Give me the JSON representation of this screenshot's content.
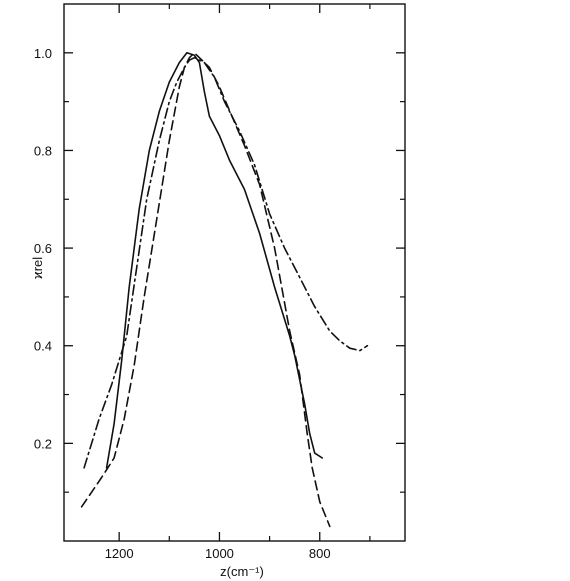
{
  "chart_data": {
    "type": "line",
    "title": "",
    "xlabel": "z(cm⁻¹)",
    "ylabel": "ϰrel",
    "x_reversed": true,
    "xlim": [
      1310,
      630
    ],
    "ylim": [
      0.0,
      1.1
    ],
    "xticks": [
      {
        "value": 1200,
        "label": "1200"
      },
      {
        "value": 1000,
        "label": "1000"
      },
      {
        "value": 800,
        "label": "800"
      }
    ],
    "xminor": [
      1100,
      900,
      700
    ],
    "yticks": [
      {
        "value": 0.2,
        "label": "0.2"
      },
      {
        "value": 0.4,
        "label": "0.4"
      },
      {
        "value": 0.6,
        "label": "0.6"
      },
      {
        "value": 0.8,
        "label": "0.8"
      },
      {
        "value": 1.0,
        "label": "1.0"
      }
    ],
    "yminor": [
      0.1,
      0.3,
      0.5,
      0.7,
      0.9
    ],
    "grid": false,
    "legend": "none",
    "series": [
      {
        "style": "solid",
        "points": [
          [
            1225,
            0.15
          ],
          [
            1210,
            0.24
          ],
          [
            1195,
            0.37
          ],
          [
            1180,
            0.52
          ],
          [
            1160,
            0.68
          ],
          [
            1140,
            0.8
          ],
          [
            1120,
            0.88
          ],
          [
            1100,
            0.94
          ],
          [
            1080,
            0.98
          ],
          [
            1065,
            1.0
          ],
          [
            1050,
            0.995
          ],
          [
            1040,
            0.98
          ],
          [
            1030,
            0.92
          ],
          [
            1020,
            0.87
          ],
          [
            1000,
            0.83
          ],
          [
            980,
            0.78
          ],
          [
            950,
            0.72
          ],
          [
            920,
            0.63
          ],
          [
            890,
            0.52
          ],
          [
            860,
            0.42
          ],
          [
            850,
            0.38
          ],
          [
            840,
            0.33
          ],
          [
            830,
            0.28
          ],
          [
            820,
            0.22
          ],
          [
            810,
            0.18
          ],
          [
            795,
            0.17
          ]
        ]
      },
      {
        "style": "dashed",
        "points": [
          [
            1275,
            0.07
          ],
          [
            1255,
            0.1
          ],
          [
            1235,
            0.13
          ],
          [
            1210,
            0.17
          ],
          [
            1190,
            0.25
          ],
          [
            1170,
            0.36
          ],
          [
            1150,
            0.5
          ],
          [
            1125,
            0.66
          ],
          [
            1100,
            0.82
          ],
          [
            1080,
            0.93
          ],
          [
            1070,
            0.97
          ],
          [
            1060,
            0.99
          ],
          [
            1050,
            1.0
          ],
          [
            1040,
            0.99
          ],
          [
            1020,
            0.97
          ],
          [
            1000,
            0.93
          ],
          [
            975,
            0.87
          ],
          [
            950,
            0.81
          ],
          [
            920,
            0.73
          ],
          [
            890,
            0.6
          ],
          [
            860,
            0.43
          ],
          [
            840,
            0.34
          ],
          [
            825,
            0.22
          ],
          [
            815,
            0.15
          ],
          [
            800,
            0.08
          ],
          [
            780,
            0.03
          ]
        ]
      },
      {
        "style": "dash-dot",
        "points": [
          [
            1270,
            0.15
          ],
          [
            1255,
            0.2
          ],
          [
            1240,
            0.25
          ],
          [
            1215,
            0.32
          ],
          [
            1185,
            0.42
          ],
          [
            1165,
            0.56
          ],
          [
            1145,
            0.7
          ],
          [
            1120,
            0.82
          ],
          [
            1100,
            0.9
          ],
          [
            1085,
            0.94
          ],
          [
            1070,
            0.97
          ],
          [
            1060,
            0.985
          ],
          [
            1050,
            0.99
          ],
          [
            1040,
            0.985
          ],
          [
            1030,
            0.98
          ],
          [
            1010,
            0.95
          ],
          [
            990,
            0.9
          ],
          [
            960,
            0.84
          ],
          [
            930,
            0.77
          ],
          [
            900,
            0.67
          ],
          [
            870,
            0.6
          ],
          [
            840,
            0.54
          ],
          [
            810,
            0.48
          ],
          [
            780,
            0.43
          ],
          [
            760,
            0.41
          ],
          [
            740,
            0.395
          ],
          [
            720,
            0.39
          ],
          [
            705,
            0.4
          ]
        ]
      }
    ]
  }
}
